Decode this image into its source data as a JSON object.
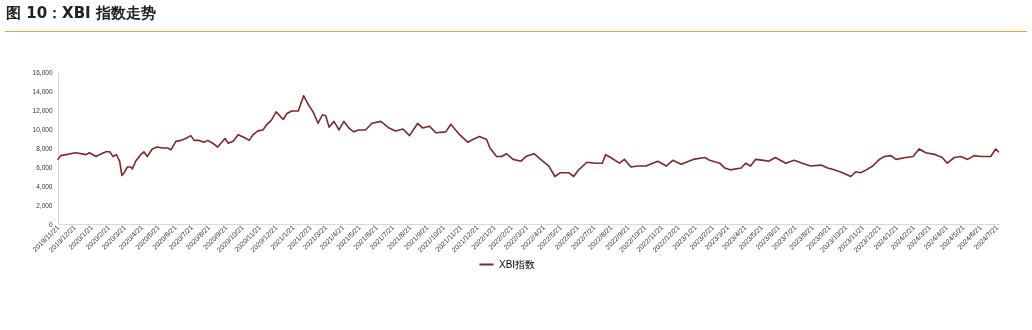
{
  "chart_data": {
    "type": "line",
    "title": "图 10：XBI 指数走势",
    "x": [
      "2019-11-21",
      "2019-11-26",
      "2019-12-23",
      "2020-01-11",
      "2020-01-17",
      "2020-01-29",
      "2020-02-04",
      "2020-02-16",
      "2020-02-23",
      "2020-02-29",
      "2020-03-06",
      "2020-03-12",
      "2020-03-16",
      "2020-03-20",
      "2020-03-26",
      "2020-04-01",
      "2020-04-04",
      "2020-04-10",
      "2020-04-19",
      "2020-04-25",
      "2020-05-01",
      "2020-05-10",
      "2020-05-19",
      "2020-05-28",
      "2020-06-07",
      "2020-06-13",
      "2020-06-22",
      "2020-07-01",
      "2020-07-10",
      "2020-07-19",
      "2020-07-25",
      "2020-08-03",
      "2020-08-12",
      "2020-08-19",
      "2020-08-28",
      "2020-09-06",
      "2020-09-19",
      "2020-09-25",
      "2020-10-04",
      "2020-10-13",
      "2020-10-24",
      "2020-11-02",
      "2020-11-09",
      "2020-11-18",
      "2020-11-27",
      "2020-12-03",
      "2020-12-12",
      "2020-12-21",
      "2021-01-03",
      "2021-01-09",
      "2021-01-18",
      "2021-01-30",
      "2021-02-09",
      "2021-02-17",
      "2021-02-26",
      "2021-03-07",
      "2021-03-15",
      "2021-03-21",
      "2021-03-27",
      "2021-04-05",
      "2021-04-14",
      "2021-04-23",
      "2021-05-02",
      "2021-05-11",
      "2021-05-20",
      "2021-06-01",
      "2021-06-13",
      "2021-06-29",
      "2021-07-14",
      "2021-07-26",
      "2021-08-08",
      "2021-08-20",
      "2021-09-04",
      "2021-09-13",
      "2021-09-25",
      "2021-10-07",
      "2021-10-25",
      "2021-11-03",
      "2021-11-19",
      "2021-12-04",
      "2021-12-13",
      "2021-12-25",
      "2022-01-07",
      "2022-01-13",
      "2022-01-25",
      "2022-02-03",
      "2022-02-12",
      "2022-02-24",
      "2022-03-10",
      "2022-03-19",
      "2022-04-03",
      "2022-04-15",
      "2022-04-30",
      "2022-05-11",
      "2022-05-21",
      "2022-06-05",
      "2022-06-14",
      "2022-06-23",
      "2022-07-08",
      "2022-07-23",
      "2022-08-05",
      "2022-08-11",
      "2022-08-20",
      "2022-09-05",
      "2022-09-14",
      "2022-09-26",
      "2022-10-08",
      "2022-10-23",
      "2022-11-14",
      "2022-11-29",
      "2022-12-11",
      "2022-12-26",
      "2023-01-17",
      "2023-02-07",
      "2023-02-16",
      "2023-03-06",
      "2023-03-15",
      "2023-03-25",
      "2023-04-14",
      "2023-04-22",
      "2023-05-01",
      "2023-05-10",
      "2023-05-25",
      "2023-06-03",
      "2023-06-15",
      "2023-07-04",
      "2023-07-19",
      "2023-08-03",
      "2023-08-18",
      "2023-09-06",
      "2023-09-18",
      "2023-09-30",
      "2023-10-15",
      "2023-10-30",
      "2023-11-08",
      "2023-11-17",
      "2023-11-27",
      "2023-12-09",
      "2023-12-21",
      "2023-12-30",
      "2024-01-11",
      "2024-01-20",
      "2024-02-07",
      "2024-02-20",
      "2024-03-02",
      "2024-03-14",
      "2024-04-01",
      "2024-04-13",
      "2024-04-22",
      "2024-05-05",
      "2024-05-17",
      "2024-05-29",
      "2024-06-10",
      "2024-06-22",
      "2024-07-10",
      "2024-07-19",
      "2024-07-24"
    ],
    "series": [
      {
        "name": "XBI指数",
        "color": "#7a2a2a",
        "values": [
          6800,
          7200,
          7500,
          7300,
          7500,
          7100,
          7300,
          7600,
          7600,
          7100,
          7300,
          6600,
          5100,
          5400,
          6000,
          6000,
          5800,
          6600,
          7300,
          7600,
          7100,
          7900,
          8100,
          8000,
          8000,
          7800,
          8700,
          8800,
          9000,
          9300,
          8800,
          8800,
          8600,
          8800,
          8500,
          8100,
          9000,
          8500,
          8700,
          9400,
          9100,
          8800,
          9400,
          9800,
          9900,
          10400,
          10900,
          11800,
          11000,
          11600,
          11900,
          11900,
          13500,
          12600,
          11800,
          10600,
          11500,
          11400,
          10200,
          10800,
          9900,
          10800,
          10100,
          9700,
          9900,
          9900,
          10600,
          10800,
          10100,
          9800,
          10000,
          9300,
          10600,
          10100,
          10300,
          9600,
          9700,
          10500,
          9400,
          8600,
          8900,
          9200,
          8900,
          8000,
          7100,
          7100,
          7400,
          6800,
          6600,
          7100,
          7400,
          6800,
          6100,
          5000,
          5400,
          5400,
          5000,
          5700,
          6500,
          6400,
          6400,
          7300,
          7000,
          6400,
          6800,
          6000,
          6100,
          6100,
          6600,
          6100,
          6700,
          6300,
          6800,
          7000,
          6700,
          6400,
          5900,
          5700,
          5900,
          6400,
          6100,
          6800,
          6700,
          6600,
          7000,
          6400,
          6700,
          6400,
          6100,
          6200,
          5900,
          5700,
          5400,
          5000,
          5500,
          5400,
          5700,
          6100,
          6800,
          7100,
          7200,
          6800,
          7000,
          7100,
          7900,
          7500,
          7300,
          7000,
          6400,
          7000,
          7100,
          6800,
          7200,
          7100,
          7100,
          7900,
          7600
        ]
      }
    ],
    "xlim": [
      "2019-11-21",
      "2024-07-25"
    ],
    "xticks": [
      {
        "value": "2019-11-21",
        "label": "2019/11/21"
      },
      {
        "value": "2019-12-21",
        "label": "2019/12/21"
      },
      {
        "value": "2020-01-21",
        "label": "2020/1/21"
      },
      {
        "value": "2020-02-21",
        "label": "2020/2/21"
      },
      {
        "value": "2020-03-21",
        "label": "2020/3/21"
      },
      {
        "value": "2020-04-21",
        "label": "2020/4/21"
      },
      {
        "value": "2020-05-21",
        "label": "2020/5/21"
      },
      {
        "value": "2020-06-21",
        "label": "2020/6/21"
      },
      {
        "value": "2020-07-21",
        "label": "2020/7/21"
      },
      {
        "value": "2020-08-21",
        "label": "2020/8/21"
      },
      {
        "value": "2020-09-21",
        "label": "2020/9/21"
      },
      {
        "value": "2020-10-21",
        "label": "2020/10/21"
      },
      {
        "value": "2020-11-21",
        "label": "2020/11/21"
      },
      {
        "value": "2020-12-21",
        "label": "2020/12/21"
      },
      {
        "value": "2021-01-21",
        "label": "2021/1/21"
      },
      {
        "value": "2021-02-21",
        "label": "2021/2/21"
      },
      {
        "value": "2021-03-21",
        "label": "2021/3/21"
      },
      {
        "value": "2021-04-21",
        "label": "2021/4/21"
      },
      {
        "value": "2021-05-21",
        "label": "2021/5/21"
      },
      {
        "value": "2021-06-21",
        "label": "2021/6/21"
      },
      {
        "value": "2021-07-21",
        "label": "2021/7/21"
      },
      {
        "value": "2021-08-21",
        "label": "2021/8/21"
      },
      {
        "value": "2021-09-21",
        "label": "2021/9/21"
      },
      {
        "value": "2021-10-21",
        "label": "2021/10/21"
      },
      {
        "value": "2021-11-21",
        "label": "2021/11/21"
      },
      {
        "value": "2021-12-21",
        "label": "2021/12/21"
      },
      {
        "value": "2022-01-21",
        "label": "2022/1/21"
      },
      {
        "value": "2022-02-21",
        "label": "2022/2/21"
      },
      {
        "value": "2022-03-21",
        "label": "2022/3/21"
      },
      {
        "value": "2022-04-21",
        "label": "2022/4/21"
      },
      {
        "value": "2022-05-21",
        "label": "2022/5/21"
      },
      {
        "value": "2022-06-21",
        "label": "2022/6/21"
      },
      {
        "value": "2022-07-21",
        "label": "2022/7/21"
      },
      {
        "value": "2022-08-21",
        "label": "2022/8/21"
      },
      {
        "value": "2022-09-21",
        "label": "2022/9/21"
      },
      {
        "value": "2022-10-21",
        "label": "2022/10/21"
      },
      {
        "value": "2022-11-21",
        "label": "2022/11/21"
      },
      {
        "value": "2022-12-21",
        "label": "2022/12/21"
      },
      {
        "value": "2023-01-21",
        "label": "2023/1/21"
      },
      {
        "value": "2023-02-21",
        "label": "2023/2/21"
      },
      {
        "value": "2023-03-21",
        "label": "2023/3/21"
      },
      {
        "value": "2023-04-21",
        "label": "2023/4/21"
      },
      {
        "value": "2023-05-21",
        "label": "2023/5/21"
      },
      {
        "value": "2023-06-21",
        "label": "2023/6/21"
      },
      {
        "value": "2023-07-21",
        "label": "2023/7/21"
      },
      {
        "value": "2023-08-21",
        "label": "2023/8/21"
      },
      {
        "value": "2023-09-21",
        "label": "2023/9/21"
      },
      {
        "value": "2023-10-21",
        "label": "2023/10/21"
      },
      {
        "value": "2023-11-21",
        "label": "2023/11/21"
      },
      {
        "value": "2023-12-21",
        "label": "2023/12/21"
      },
      {
        "value": "2024-01-21",
        "label": "2024/1/21"
      },
      {
        "value": "2024-02-21",
        "label": "2024/2/21"
      },
      {
        "value": "2024-03-21",
        "label": "2024/3/21"
      },
      {
        "value": "2024-04-21",
        "label": "2024/4/21"
      },
      {
        "value": "2024-05-21",
        "label": "2024/5/21"
      },
      {
        "value": "2024-06-21",
        "label": "2024/6/21"
      },
      {
        "value": "2024-07-21",
        "label": "2024/7/21"
      }
    ],
    "ylim": [
      0,
      16000
    ],
    "yticks": [
      0,
      {
        "value": 2000,
        "label": "2,000"
      },
      {
        "value": 4000,
        "label": "4,000"
      },
      {
        "value": 6000,
        "label": "6,000"
      },
      {
        "value": 8000,
        "label": "8,000"
      },
      {
        "value": 10000,
        "label": "10,000"
      },
      {
        "value": 12000,
        "label": "12,000"
      },
      {
        "value": 14000,
        "label": "14,000"
      },
      {
        "value": 16000,
        "label": "16,000"
      }
    ],
    "legend": "bottom"
  }
}
